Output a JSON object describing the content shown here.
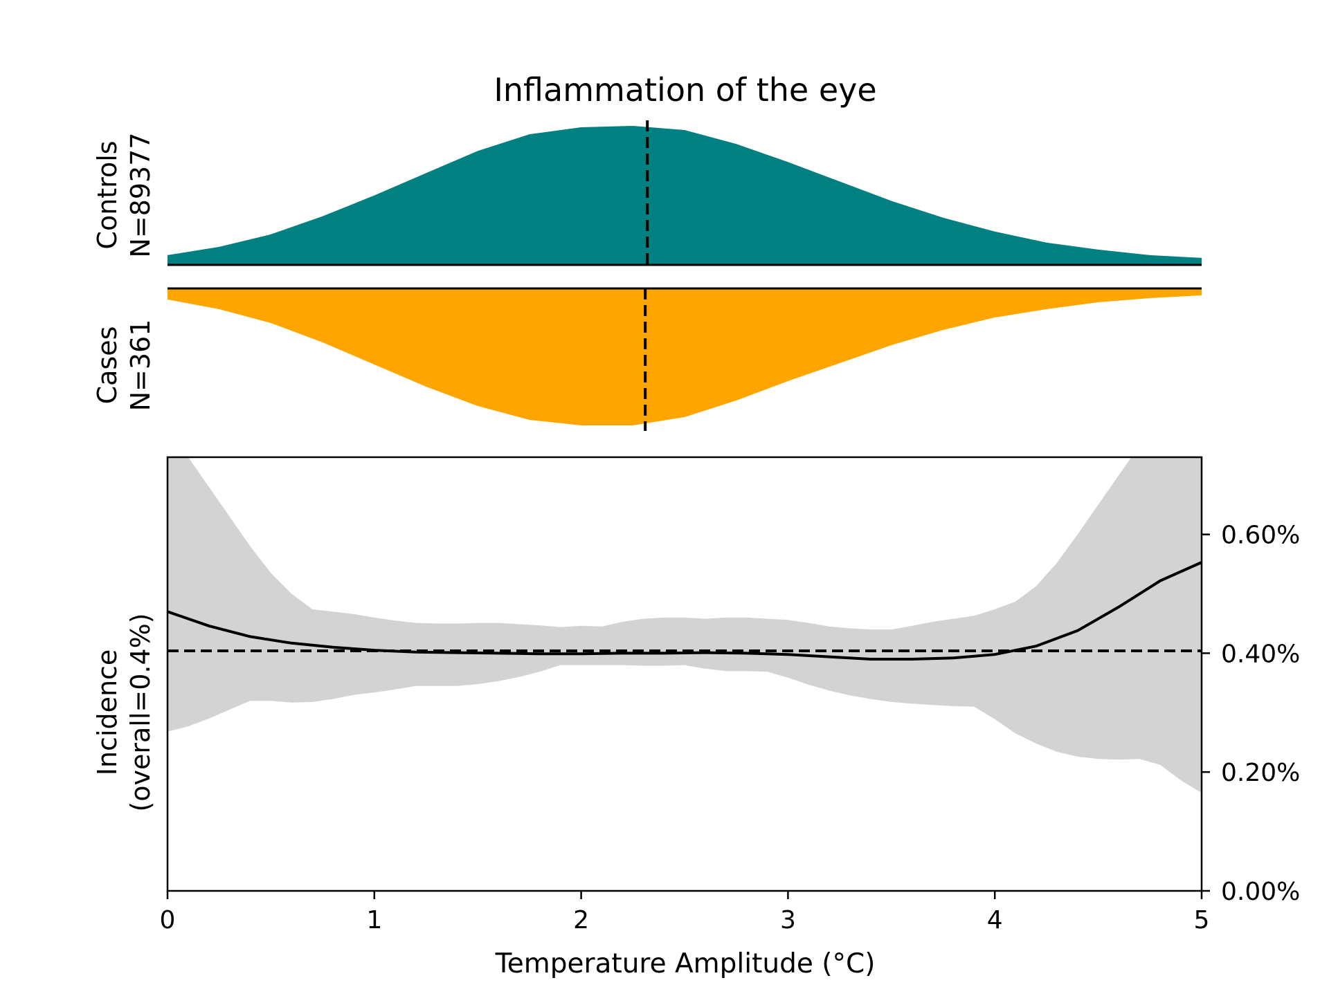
{
  "chart_data": {
    "type": "area",
    "title": "Inflammation of the eye",
    "xlabel": "Temperature Amplitude (°C)",
    "xlim": [
      0,
      5
    ],
    "x_ticks": [
      "0",
      "1",
      "2",
      "3",
      "4",
      "5"
    ],
    "x_tick_values": [
      0,
      1,
      2,
      3,
      4,
      5
    ],
    "colors": {
      "controls": "#008080",
      "cases": "#FFA500",
      "ci_band": "#D3D3D3",
      "line": "#000000"
    },
    "distributions": {
      "x": [
        0,
        0.25,
        0.5,
        0.75,
        1,
        1.25,
        1.5,
        1.75,
        2,
        2.25,
        2.5,
        2.75,
        3,
        3.25,
        3.5,
        3.75,
        4,
        4.25,
        4.5,
        4.75,
        5
      ],
      "controls": {
        "label_line1": "Controls",
        "label_line2": "N=89377",
        "median": 2.32,
        "density": [
          0.07,
          0.13,
          0.22,
          0.35,
          0.5,
          0.66,
          0.82,
          0.94,
          0.99,
          1.0,
          0.97,
          0.87,
          0.74,
          0.6,
          0.46,
          0.34,
          0.24,
          0.16,
          0.11,
          0.07,
          0.05
        ]
      },
      "cases": {
        "label_line1": "Cases",
        "label_line2": "N=361",
        "median": 2.31,
        "density": [
          0.08,
          0.15,
          0.25,
          0.39,
          0.55,
          0.71,
          0.85,
          0.95,
          0.99,
          0.99,
          0.93,
          0.81,
          0.67,
          0.54,
          0.41,
          0.3,
          0.21,
          0.15,
          0.1,
          0.07,
          0.05
        ]
      }
    },
    "incidence": {
      "ylabel_line1": "Incidence",
      "ylabel_line2": "(overall=0.4%)",
      "ylim": [
        0,
        0.0073
      ],
      "y_ticks": [
        "0.00%",
        "0.20%",
        "0.40%",
        "0.60%"
      ],
      "y_tick_values": [
        0,
        0.002,
        0.004,
        0.006
      ],
      "overall": 0.00404,
      "x": [
        0,
        0.2,
        0.4,
        0.6,
        0.8,
        1.0,
        1.2,
        1.4,
        1.6,
        1.8,
        2.0,
        2.2,
        2.4,
        2.6,
        2.8,
        3.0,
        3.2,
        3.4,
        3.6,
        3.8,
        4.0,
        4.2,
        4.4,
        4.6,
        4.8,
        5.0
      ],
      "estimate": [
        0.0047,
        0.00446,
        0.00428,
        0.00417,
        0.0041,
        0.00405,
        0.00402,
        0.00401,
        0.004,
        0.00399,
        0.00399,
        0.004,
        0.004,
        0.00401,
        0.004,
        0.00398,
        0.00394,
        0.0039,
        0.0039,
        0.00392,
        0.00398,
        0.00412,
        0.00438,
        0.00478,
        0.00522,
        0.00553
      ],
      "ci_x": [
        0,
        0.1,
        0.2,
        0.3,
        0.4,
        0.5,
        0.6,
        0.7,
        0.8,
        0.9,
        1.0,
        1.1,
        1.2,
        1.3,
        1.4,
        1.5,
        1.6,
        1.7,
        1.8,
        1.9,
        2.0,
        2.1,
        2.2,
        2.3,
        2.4,
        2.5,
        2.6,
        2.7,
        2.8,
        2.9,
        3.0,
        3.1,
        3.2,
        3.3,
        3.4,
        3.5,
        3.6,
        3.7,
        3.8,
        3.9,
        4.0,
        4.1,
        4.2,
        4.3,
        4.4,
        4.5,
        4.6,
        4.7,
        4.8,
        4.9,
        5.0
      ],
      "ci_upper": [
        0.0075,
        0.0073,
        0.0068,
        0.0063,
        0.0058,
        0.00535,
        0.005,
        0.00474,
        0.0047,
        0.00466,
        0.0046,
        0.00455,
        0.00451,
        0.0045,
        0.0045,
        0.00451,
        0.00451,
        0.00449,
        0.00447,
        0.00444,
        0.00446,
        0.00445,
        0.00453,
        0.00458,
        0.0046,
        0.0046,
        0.00458,
        0.0046,
        0.0046,
        0.00458,
        0.00456,
        0.00451,
        0.00445,
        0.00442,
        0.0044,
        0.0044,
        0.00446,
        0.00453,
        0.00458,
        0.00463,
        0.00474,
        0.00487,
        0.00513,
        0.00552,
        0.006,
        0.0065,
        0.007,
        0.0075,
        0.0075,
        0.0075,
        0.0075
      ],
      "ci_lower": [
        0.00268,
        0.00277,
        0.0029,
        0.00305,
        0.0032,
        0.0032,
        0.00317,
        0.00318,
        0.00323,
        0.0033,
        0.00334,
        0.00339,
        0.00345,
        0.00345,
        0.00345,
        0.00348,
        0.00353,
        0.0036,
        0.00369,
        0.0038,
        0.0038,
        0.0038,
        0.0038,
        0.00379,
        0.00379,
        0.0038,
        0.00374,
        0.0037,
        0.0037,
        0.00369,
        0.00359,
        0.00347,
        0.00337,
        0.00329,
        0.00323,
        0.00318,
        0.00315,
        0.00313,
        0.00311,
        0.0031,
        0.00289,
        0.00265,
        0.00248,
        0.00234,
        0.00226,
        0.00222,
        0.00221,
        0.00222,
        0.00212,
        0.00186,
        0.00165
      ]
    }
  }
}
